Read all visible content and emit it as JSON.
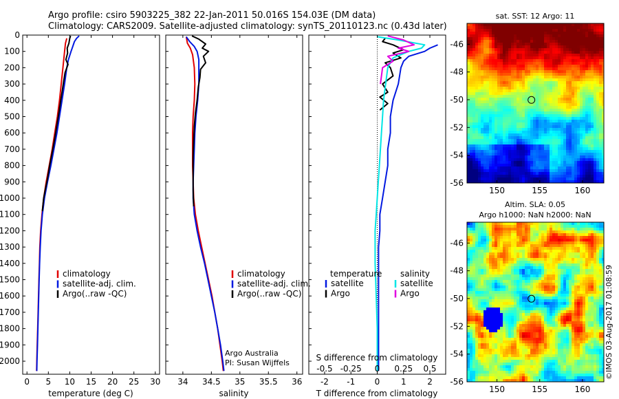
{
  "header": {
    "line1": "Argo profile: csiro 5903225_382 22-Jan-2011 50.016S 154.03E (DM data)",
    "line2": "Climatology: CARS2009. Satellite-adjusted climatology: synTS_20110123.nc (0.43d later)"
  },
  "colors": {
    "climatology": "#e00000",
    "satellite": "#0018e0",
    "argo": "#000000",
    "sal_satellite": "#00e5e5",
    "sal_argo": "#e000e0"
  },
  "chart_data": [
    {
      "type": "line",
      "panel": "temperature",
      "xlabel": "temperature (deg C)",
      "ylabel": "",
      "xlim": [
        -1,
        31
      ],
      "ylim": [
        2080,
        0
      ],
      "xticks": [
        0,
        5,
        10,
        15,
        20,
        25,
        30
      ],
      "yticks": [
        0,
        100,
        200,
        300,
        400,
        500,
        600,
        700,
        800,
        900,
        1000,
        1100,
        1200,
        1300,
        1400,
        1500,
        1600,
        1700,
        1800,
        1900,
        2000
      ],
      "legend": [
        "climatology",
        "satellite-adj. clim.",
        "Argo(..raw -QC)"
      ],
      "series": [
        {
          "name": "climatology",
          "points": [
            [
              9.3,
              20
            ],
            [
              9.0,
              50
            ],
            [
              8.8,
              100
            ],
            [
              8.4,
              200
            ],
            [
              8.0,
              300
            ],
            [
              7.6,
              400
            ],
            [
              7.1,
              500
            ],
            [
              6.5,
              600
            ],
            [
              5.9,
              700
            ],
            [
              5.2,
              800
            ],
            [
              4.5,
              900
            ],
            [
              3.9,
              1000
            ],
            [
              3.5,
              1100
            ],
            [
              3.2,
              1200
            ],
            [
              3.0,
              1300
            ],
            [
              2.9,
              1400
            ],
            [
              2.8,
              1500
            ],
            [
              2.7,
              1600
            ],
            [
              2.6,
              1700
            ],
            [
              2.5,
              1800
            ],
            [
              2.4,
              1900
            ],
            [
              2.3,
              2000
            ],
            [
              2.25,
              2060
            ]
          ]
        },
        {
          "name": "satellite-adj. clim.",
          "points": [
            [
              12.2,
              5
            ],
            [
              11.6,
              20
            ],
            [
              11.1,
              40
            ],
            [
              10.7,
              70
            ],
            [
              10.3,
              100
            ],
            [
              9.7,
              150
            ],
            [
              9.3,
              200
            ],
            [
              8.8,
              300
            ],
            [
              8.2,
              400
            ],
            [
              7.6,
              500
            ],
            [
              7.0,
              600
            ],
            [
              6.3,
              700
            ],
            [
              5.6,
              800
            ],
            [
              4.8,
              900
            ],
            [
              4.1,
              1000
            ],
            [
              3.6,
              1100
            ],
            [
              3.3,
              1200
            ],
            [
              3.1,
              1300
            ],
            [
              2.95,
              1400
            ],
            [
              2.85,
              1500
            ],
            [
              2.75,
              1600
            ],
            [
              2.65,
              1700
            ],
            [
              2.55,
              1800
            ],
            [
              2.45,
              1900
            ],
            [
              2.35,
              2000
            ],
            [
              2.3,
              2060
            ]
          ]
        },
        {
          "name": "Argo(..raw -QC)",
          "points": [
            [
              10.2,
              5
            ],
            [
              10.0,
              20
            ],
            [
              9.8,
              50
            ],
            [
              9.4,
              80
            ],
            [
              9.5,
              110
            ],
            [
              9.1,
              150
            ],
            [
              9.6,
              180
            ],
            [
              8.9,
              230
            ],
            [
              8.6,
              280
            ],
            [
              8.2,
              350
            ],
            [
              7.9,
              400
            ],
            [
              7.5,
              470
            ],
            [
              7.0,
              550
            ],
            [
              6.4,
              650
            ],
            [
              5.9,
              720
            ],
            [
              5.3,
              800
            ],
            [
              4.8,
              880
            ],
            [
              4.2,
              960
            ],
            [
              3.9,
              1000
            ],
            [
              3.6,
              1080
            ]
          ]
        }
      ]
    },
    {
      "type": "line",
      "panel": "salinity",
      "xlabel": "salinity",
      "ylabel": "",
      "xlim": [
        33.7,
        36.1
      ],
      "ylim": [
        2080,
        0
      ],
      "xticks": [
        34,
        34.5,
        35,
        35.5,
        36
      ],
      "legend": [
        "climatology",
        "satellite-adj. clim.",
        "Argo(..raw -QC)"
      ],
      "annotation": [
        "Argo Australia",
        "PI: Susan Wijffels"
      ],
      "series": [
        {
          "name": "climatology",
          "points": [
            [
              34.06,
              10
            ],
            [
              34.08,
              50
            ],
            [
              34.13,
              80
            ],
            [
              34.17,
              120
            ],
            [
              34.2,
              200
            ],
            [
              34.21,
              300
            ],
            [
              34.2,
              400
            ],
            [
              34.18,
              500
            ],
            [
              34.17,
              600
            ],
            [
              34.17,
              700
            ],
            [
              34.17,
              800
            ],
            [
              34.18,
              900
            ],
            [
              34.19,
              1000
            ],
            [
              34.22,
              1100
            ],
            [
              34.27,
              1200
            ],
            [
              34.33,
              1300
            ],
            [
              34.39,
              1400
            ],
            [
              34.45,
              1500
            ],
            [
              34.51,
              1600
            ],
            [
              34.56,
              1700
            ],
            [
              34.61,
              1800
            ],
            [
              34.65,
              1900
            ],
            [
              34.69,
              2000
            ],
            [
              34.71,
              2060
            ]
          ]
        },
        {
          "name": "satellite-adj. clim.",
          "points": [
            [
              34.06,
              10
            ],
            [
              34.12,
              40
            ],
            [
              34.2,
              70
            ],
            [
              34.25,
              100
            ],
            [
              34.28,
              150
            ],
            [
              34.28,
              200
            ],
            [
              34.28,
              300
            ],
            [
              34.26,
              400
            ],
            [
              34.23,
              500
            ],
            [
              34.21,
              600
            ],
            [
              34.2,
              700
            ],
            [
              34.19,
              800
            ],
            [
              34.18,
              900
            ],
            [
              34.18,
              1000
            ],
            [
              34.2,
              1100
            ],
            [
              34.25,
              1200
            ],
            [
              34.31,
              1300
            ],
            [
              34.38,
              1400
            ],
            [
              34.44,
              1500
            ],
            [
              34.5,
              1600
            ],
            [
              34.56,
              1700
            ],
            [
              34.61,
              1800
            ],
            [
              34.66,
              1900
            ],
            [
              34.7,
              2000
            ],
            [
              34.72,
              2060
            ]
          ]
        },
        {
          "name": "Argo(..raw -QC)",
          "points": [
            [
              34.16,
              5
            ],
            [
              34.28,
              25
            ],
            [
              34.4,
              55
            ],
            [
              34.34,
              80
            ],
            [
              34.45,
              100
            ],
            [
              34.36,
              130
            ],
            [
              34.4,
              170
            ],
            [
              34.31,
              210
            ],
            [
              34.3,
              260
            ],
            [
              34.27,
              320
            ],
            [
              34.25,
              400
            ],
            [
              34.22,
              480
            ],
            [
              34.2,
              560
            ],
            [
              34.19,
              650
            ],
            [
              34.18,
              750
            ],
            [
              34.18,
              850
            ],
            [
              34.18,
              950
            ],
            [
              34.19,
              1050
            ]
          ]
        }
      ]
    },
    {
      "type": "line",
      "panel": "difference",
      "xlabel": "T difference from climatology",
      "xlabel2": "S difference from climatology",
      "xlim": [
        -2.6,
        2.6
      ],
      "xlim_S": [
        -0.65,
        0.65
      ],
      "ylim": [
        2080,
        0
      ],
      "xticks": [
        -2,
        -1,
        0,
        1,
        2
      ],
      "xticks_S": [
        -0.5,
        -0.25,
        0,
        0.25,
        0.5
      ],
      "xticklabels_S": [
        "-0.5",
        "-0.25",
        "0",
        "0.25",
        "0.5"
      ],
      "legend_T": {
        "title": "temperature",
        "entries": [
          "satellite",
          "Argo"
        ]
      },
      "legend_S": {
        "title": "salinity",
        "entries": [
          "satellite",
          "Argo"
        ]
      },
      "series": [
        {
          "name": "T satellite",
          "axis": "T",
          "points": [
            [
              2.3,
              60
            ],
            [
              2.0,
              80
            ],
            [
              1.8,
              100
            ],
            [
              1.2,
              130
            ],
            [
              1.0,
              160
            ],
            [
              0.9,
              200
            ],
            [
              0.8,
              300
            ],
            [
              0.6,
              400
            ],
            [
              0.5,
              500
            ],
            [
              0.5,
              600
            ],
            [
              0.4,
              700
            ],
            [
              0.4,
              800
            ],
            [
              0.3,
              900
            ],
            [
              0.2,
              1000
            ],
            [
              0.1,
              1100
            ],
            [
              0.1,
              1200
            ],
            [
              0.05,
              1300
            ],
            [
              0.05,
              1400
            ],
            [
              0.05,
              1500
            ],
            [
              0.05,
              1600
            ],
            [
              0.05,
              1700
            ],
            [
              0.05,
              1800
            ],
            [
              0.05,
              1900
            ],
            [
              0.05,
              2000
            ],
            [
              0.05,
              2060
            ]
          ]
        },
        {
          "name": "T Argo",
          "axis": "T",
          "points": [
            [
              0.3,
              20
            ],
            [
              0.2,
              40
            ],
            [
              0.6,
              60
            ],
            [
              1.0,
              90
            ],
            [
              0.6,
              110
            ],
            [
              0.9,
              140
            ],
            [
              0.3,
              170
            ],
            [
              0.5,
              200
            ],
            [
              0.6,
              250
            ],
            [
              0.2,
              300
            ],
            [
              0.4,
              350
            ],
            [
              0.1,
              380
            ],
            [
              0.4,
              420
            ],
            [
              0.1,
              460
            ]
          ]
        },
        {
          "name": "S satellite",
          "axis": "S",
          "points": [
            [
              0.0,
              10
            ],
            [
              0.2,
              30
            ],
            [
              0.45,
              60
            ],
            [
              0.42,
              80
            ],
            [
              0.3,
              100
            ],
            [
              0.15,
              140
            ],
            [
              0.1,
              200
            ],
            [
              0.08,
              300
            ],
            [
              0.06,
              400
            ],
            [
              0.05,
              500
            ],
            [
              0.04,
              600
            ],
            [
              0.03,
              700
            ],
            [
              0.02,
              800
            ],
            [
              0.01,
              900
            ],
            [
              0.0,
              1000
            ],
            [
              -0.01,
              1100
            ],
            [
              -0.02,
              1200
            ],
            [
              -0.02,
              1400
            ],
            [
              -0.01,
              1600
            ],
            [
              0.0,
              1800
            ],
            [
              0.0,
              2000
            ],
            [
              0.0,
              2060
            ]
          ]
        },
        {
          "name": "S Argo",
          "axis": "S",
          "points": [
            [
              0.1,
              5
            ],
            [
              0.25,
              30
            ],
            [
              0.35,
              60
            ],
            [
              0.2,
              80
            ],
            [
              0.3,
              100
            ],
            [
              0.1,
              130
            ],
            [
              0.15,
              160
            ],
            [
              0.05,
              200
            ],
            [
              0.03,
              300
            ]
          ]
        }
      ]
    },
    {
      "type": "heatmap",
      "panel": "sst_map",
      "title": "sat. SST: 12 Argo: 11",
      "xlim": [
        146.5,
        162.5
      ],
      "ylim": [
        -56,
        -44.5
      ],
      "xticks": [
        150,
        155,
        160
      ],
      "yticks": [
        -46,
        -48,
        -50,
        -52,
        -54,
        -56
      ],
      "marker": [
        154.03,
        -50.016
      ]
    },
    {
      "type": "heatmap",
      "panel": "sla_map",
      "title": "Altim. SLA: 0.05",
      "title2": "Argo h1000: NaN h2000: NaN",
      "xlim": [
        146.5,
        162.5
      ],
      "ylim": [
        -56,
        -44.5
      ],
      "xticks": [
        150,
        155,
        160
      ],
      "yticks": [
        -46,
        -48,
        -50,
        -52,
        -54,
        -56
      ],
      "marker": [
        154.03,
        -50.016
      ]
    }
  ],
  "watermark": "©IMOS 03-Aug-2017 01:08:59"
}
